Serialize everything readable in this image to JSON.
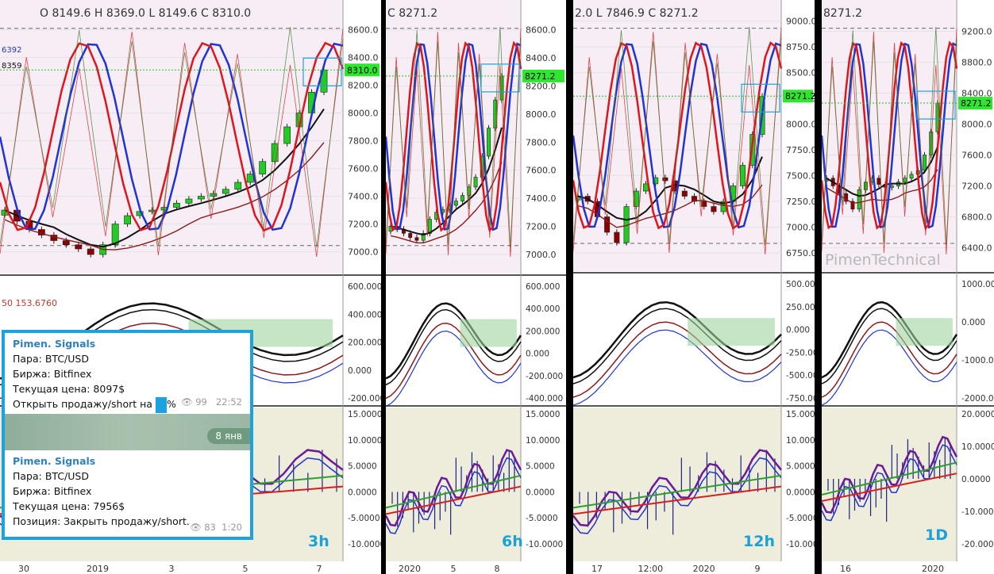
{
  "panels": [
    {
      "timeframe": "3h",
      "ohlc": "O 8149.6  H 8369.0  L 8149.6  C 8310.0",
      "price_ticks": [
        "8600.0",
        "8400.0",
        "8200.0",
        "8000.0",
        "7800.0",
        "7600.0",
        "7400.0",
        "7200.0",
        "7000.0"
      ],
      "last_price": "8310.0",
      "left_values": [
        "6392",
        "8359"
      ],
      "osc1_ticks": [
        "600.000",
        "400.000",
        "200.000",
        "0.000",
        "-200.000"
      ],
      "osc1_values": "50   153.6760",
      "osc2_ticks": [
        "15.0000",
        "10.0000",
        "5.0000",
        "0.0000",
        "-5.0000",
        "-10.0000"
      ],
      "time_ticks": [
        "30",
        "2019",
        "3",
        "5",
        "7"
      ]
    },
    {
      "timeframe": "6h",
      "ohlc": "C 8271.2",
      "price_ticks": [
        "8600.0",
        "8400.0",
        "8200.0",
        "8000.0",
        "7800.0",
        "7600.0",
        "7400.0",
        "7200.0",
        "7000.0"
      ],
      "last_price": "8271.2",
      "osc1_ticks": [
        "600.000",
        "400.000",
        "200.000",
        "0.000",
        "-200.000",
        "-400.000"
      ],
      "osc2_ticks": [
        "15.0000",
        "10.0000",
        "5.0000",
        "0.0000",
        "-5.0000",
        "-10.0000"
      ],
      "time_ticks": [
        "2020",
        "5",
        "8"
      ]
    },
    {
      "timeframe": "12h",
      "ohlc": "2.0  L 7846.9  C 8271.2",
      "price_ticks": [
        "9000.0",
        "8750.0",
        "8500.0",
        "8250.0",
        "8000.0",
        "7750.0",
        "7500.0",
        "7250.0",
        "7000.0",
        "6750.0"
      ],
      "last_price": "8271.2",
      "osc1_ticks": [
        "500.000",
        "250.000",
        "0.000",
        "-250.000",
        "-500.000",
        "-750.000"
      ],
      "osc2_ticks": [
        "15.0000",
        "10.0000",
        "5.0000",
        "0.0000",
        "-5.0000",
        "-10.0000"
      ],
      "time_ticks": [
        "17",
        "12:00",
        "2020",
        "9"
      ]
    },
    {
      "timeframe": "1D",
      "ohlc": "8271.2",
      "price_ticks": [
        "9200.0",
        "8800.0",
        "8400.0",
        "8000.0",
        "7600.0",
        "7200.0",
        "6800.0",
        "6400.0"
      ],
      "last_price": "8271.2",
      "watermark": "PimenTechnical",
      "osc1_ticks": [
        "1000.000",
        "0.000",
        "-1000.000",
        "-2000.000"
      ],
      "osc2_ticks": [
        "20.0000",
        "10.0000",
        "0.0000",
        "-10.0000",
        "-20.0000"
      ],
      "time_ticks": [
        "16",
        "2020"
      ]
    }
  ],
  "signals": {
    "msg1": {
      "title": "Pimen. Signals",
      "pair": "Пара: BTC/USD",
      "exchange": "Биржа: Bitfinex",
      "price": "Текущая цена: 8097$",
      "action": "Открыть продажу/short на",
      "action_tail": "%",
      "views": "99",
      "time": "22:52"
    },
    "date_pill": "8 янв",
    "msg2": {
      "title": "Pimen. Signals",
      "pair": "Пара: BTC/USD",
      "exchange": "Биржа: Bitfinex",
      "price": "Текущая цена: 7956$",
      "position": "Позиция:  Закрыть  продажу/short.",
      "views": "83",
      "time": "1:20"
    }
  },
  "colors": {
    "up": "#22cc22",
    "down": "#8b0000",
    "blue": "#1f33d6",
    "red": "#e0141e",
    "accent": "#1aa3de"
  },
  "chart_data": [
    {
      "type": "line",
      "timeframe": "3h",
      "title": "",
      "x_ticks": [
        "30",
        "2019",
        "3",
        "5",
        "7"
      ],
      "y_ticks": [
        7000,
        7200,
        7400,
        7600,
        7800,
        8000,
        8200,
        8400,
        8600
      ],
      "ylim": [
        6900,
        8700
      ],
      "close": [
        7300,
        7220,
        7160,
        7120,
        7080,
        7050,
        7020,
        6980,
        7050,
        7200,
        7260,
        7290,
        7300,
        7320,
        7350,
        7380,
        7400,
        7420,
        7450,
        7500,
        7560,
        7650,
        7780,
        7900,
        8000,
        8150,
        8310
      ],
      "last": 8310.0
    },
    {
      "type": "line",
      "timeframe": "6h",
      "title": "",
      "x_ticks": [
        "2020",
        "5",
        "8"
      ],
      "y_ticks": [
        7000,
        7200,
        7400,
        7600,
        7800,
        8000,
        8200,
        8400,
        8600
      ],
      "ylim": [
        6920,
        8700
      ],
      "close": [
        7200,
        7180,
        7150,
        7120,
        7100,
        7150,
        7250,
        7300,
        7320,
        7350,
        7380,
        7420,
        7480,
        7550,
        7700,
        7900,
        8100,
        8271
      ],
      "last": 8271.2
    },
    {
      "type": "line",
      "timeframe": "12h",
      "title": "",
      "x_ticks": [
        "17",
        "12:00",
        "2020",
        "9"
      ],
      "y_ticks": [
        6750,
        7000,
        7250,
        7500,
        7750,
        8000,
        8250,
        8500,
        8750,
        9000
      ],
      "ylim": [
        6650,
        9050
      ],
      "close": [
        7300,
        7250,
        7100,
        6950,
        6850,
        7200,
        7350,
        7420,
        7480,
        7450,
        7350,
        7300,
        7250,
        7200,
        7150,
        7250,
        7400,
        7600,
        7900,
        8271
      ],
      "last": 8271.2
    },
    {
      "type": "line",
      "timeframe": "1D",
      "title": "",
      "x_ticks": [
        "16",
        "2020"
      ],
      "y_ticks": [
        6400,
        6800,
        7200,
        7600,
        8000,
        8400,
        8800,
        9200
      ],
      "ylim": [
        6200,
        9400
      ],
      "close": [
        7300,
        7200,
        7100,
        7000,
        6900,
        7150,
        7250,
        7300,
        7220,
        7180,
        7200,
        7250,
        7300,
        7350,
        7400,
        7600,
        7900,
        8271
      ],
      "last": 8271.2
    }
  ]
}
